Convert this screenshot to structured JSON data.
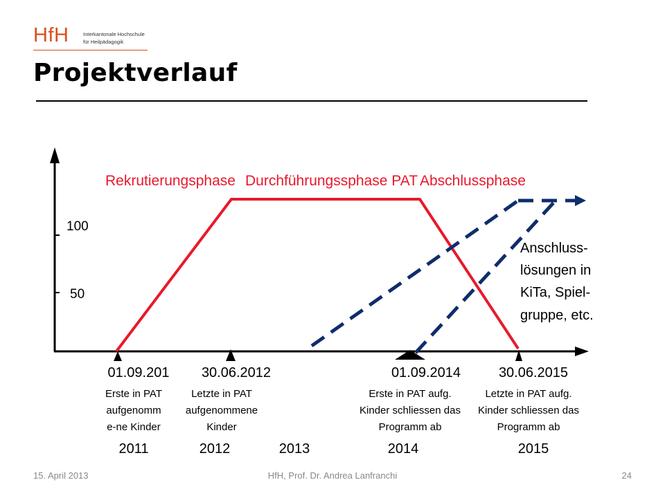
{
  "header": {
    "logo_text": "HfH",
    "logo_line1": "Interkantonale Hochschule",
    "logo_line2": "für Heilpädagogik",
    "title": "Projektverlauf"
  },
  "diagram": {
    "phases": [
      "Rekrutierungsphase",
      "Durchführungssphase PAT",
      "Abschlussphase"
    ],
    "y_ticks": [
      "100",
      "50"
    ],
    "milestones": [
      {
        "date": "01.09.201",
        "text": [
          "Erste in PAT",
          "aufgenomm",
          "e-ne Kinder"
        ]
      },
      {
        "date": "30.06.2012",
        "text": [
          "Letzte in PAT",
          "aufgenommene",
          "Kinder"
        ]
      },
      {
        "date": "01.09.2014",
        "text": [
          "Erste in PAT aufg.",
          "Kinder schliessen das",
          "Programm ab"
        ]
      },
      {
        "date": "30.06.2015",
        "text": [
          "Letzte in PAT aufg.",
          "Kinder schliessen das",
          "Programm ab"
        ]
      }
    ],
    "years": [
      "2011",
      "2012",
      "2013",
      "2014",
      "2015"
    ],
    "annotation": [
      "Anschluss-",
      "lösungen in",
      "KiTa, Spiel-",
      "gruppe, etc."
    ],
    "colors": {
      "phase_line": "#e8192c",
      "followup_line": "#0f2d6b",
      "axis": "#000000"
    }
  },
  "footer": {
    "date": "15. April 2013",
    "author": "HfH, Prof. Dr. Andrea Lanfranchi",
    "page": "24"
  }
}
